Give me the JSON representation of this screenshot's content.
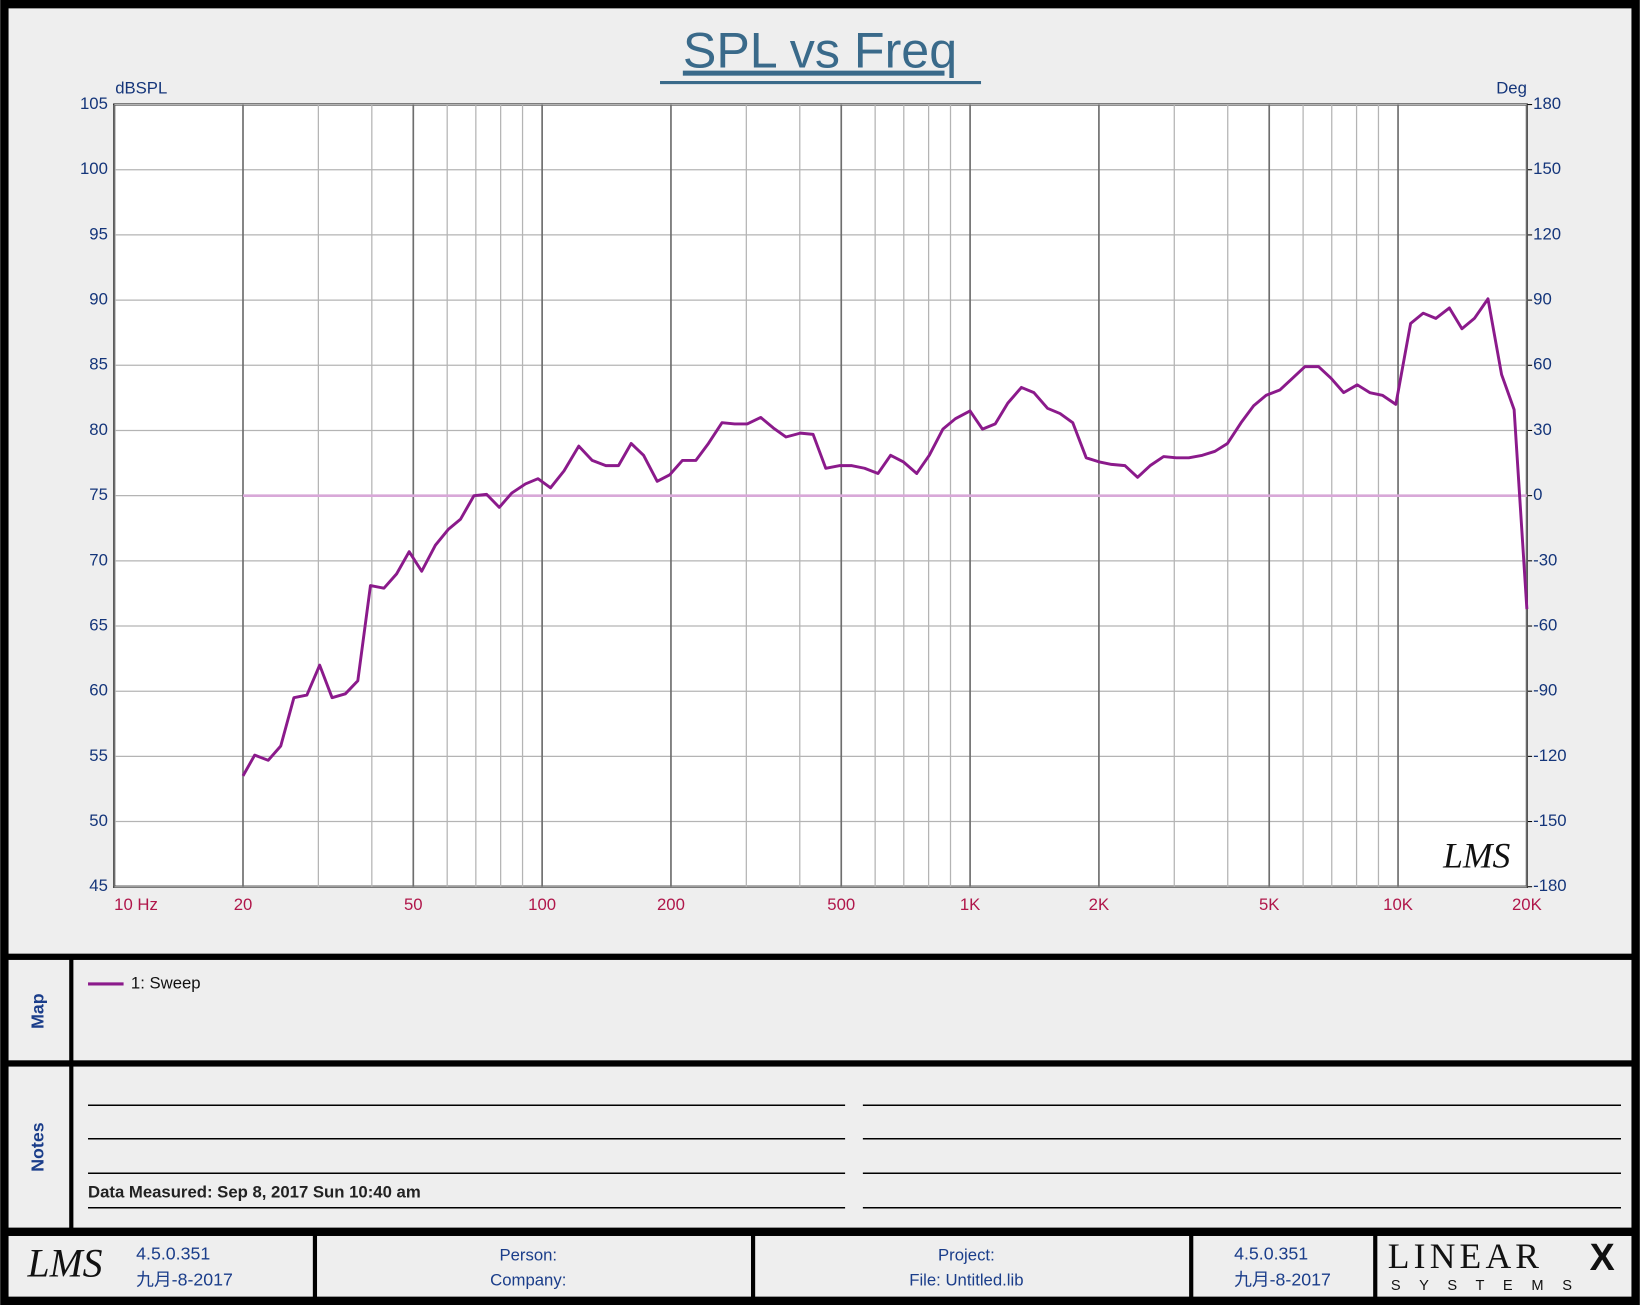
{
  "chart_data": {
    "type": "line",
    "title": "SPL vs Freq",
    "ylabel": "dBSPL",
    "y2label": "Deg",
    "logx": true,
    "grid": true,
    "x": [
      20,
      21.3,
      22.9,
      24.5,
      26.3,
      28.2,
      30.2,
      32.3,
      34.7,
      37.1,
      39.7,
      42.7,
      45.7,
      48.9,
      52.3,
      56.3,
      60.3,
      64.5,
      69.3,
      74.2,
      79.4,
      84.9,
      91.4,
      97.8,
      104.6,
      112.5,
      121.8,
      130.9,
      140.9,
      150.8,
      161.4,
      172.6,
      185.7,
      198.7,
      212.7,
      228.7,
      244.7,
      263.2,
      281.8,
      301.4,
      324.2,
      346.7,
      371.3,
      401.5,
      429.6,
      459.9,
      494.7,
      529.5,
      566.6,
      609.5,
      652.1,
      697.9,
      750.4,
      803,
      863.7,
      924.3,
      1000,
      1069,
      1145,
      1225,
      1318,
      1410,
      1517,
      1623,
      1737,
      1868,
      1999,
      2139,
      2301,
      2462,
      2634,
      2833,
      3032,
      3244,
      3490,
      3734,
      3995,
      4298,
      4599,
      4920,
      5293,
      5664,
      6060,
      6519,
      6975,
      7463,
      8028,
      8590,
      9190,
      9885,
      10700,
      11450,
      12250,
      13180,
      14100,
      15080,
      16220,
      17450,
      18670,
      20000
    ],
    "series": [
      {
        "name": "1: Sweep",
        "color": "#8b1a8b",
        "values": [
          53.5,
          55.1,
          54.7,
          55.8,
          59.5,
          59.7,
          62.0,
          59.5,
          59.8,
          60.8,
          68.1,
          67.9,
          69.0,
          70.7,
          69.2,
          71.2,
          72.4,
          73.2,
          75.0,
          75.1,
          74.1,
          75.2,
          75.9,
          76.3,
          75.6,
          76.9,
          78.8,
          77.7,
          77.3,
          77.3,
          79.0,
          78.1,
          76.1,
          76.6,
          77.7,
          77.7,
          79.0,
          80.6,
          80.5,
          80.5,
          81.0,
          80.2,
          79.5,
          79.8,
          79.7,
          77.1,
          77.3,
          77.3,
          77.1,
          76.7,
          78.1,
          77.6,
          76.7,
          78.1,
          80.1,
          80.9,
          81.5,
          80.1,
          80.5,
          82.1,
          83.3,
          82.9,
          81.7,
          81.3,
          80.6,
          77.9,
          77.6,
          77.4,
          77.3,
          76.4,
          77.3,
          78.0,
          77.9,
          77.9,
          78.1,
          78.4,
          79.0,
          80.6,
          81.9,
          82.7,
          83.1,
          84.0,
          84.9,
          84.9,
          84.0,
          82.9,
          83.5,
          82.9,
          82.7,
          82.0,
          88.2,
          89.0,
          88.6,
          89.4,
          87.8,
          88.6,
          90.1,
          84.3,
          81.6,
          66.3
        ]
      }
    ],
    "phase_line": {
      "value": 0,
      "color": "#d8a8d8",
      "axis": "y2"
    },
    "xlim": [
      10,
      20000
    ],
    "xticks": [
      {
        "value": 10,
        "label": "10  Hz"
      },
      20,
      50,
      100,
      200,
      500,
      {
        "value": 1000,
        "label": "1K"
      },
      {
        "value": 2000,
        "label": "2K"
      },
      {
        "value": 5000,
        "label": "5K"
      },
      {
        "value": 10000,
        "label": "10K"
      },
      {
        "value": 20000,
        "label": "20K"
      }
    ],
    "xgrid": [
      30,
      40,
      60,
      70,
      80,
      90,
      300,
      400,
      600,
      700,
      800,
      900,
      3000,
      4000,
      6000,
      7000,
      8000,
      9000
    ],
    "ylim": [
      45,
      105
    ],
    "yticks": [
      45,
      50,
      55,
      60,
      65,
      70,
      75,
      80,
      85,
      90,
      95,
      100,
      105
    ],
    "y2lim": [
      -180,
      180
    ],
    "y2ticks": [
      -180,
      -150,
      -120,
      -90,
      -60,
      -30,
      0,
      30,
      60,
      90,
      120,
      150,
      180
    ],
    "watermark": "LMS"
  },
  "panel": {
    "map_label": "Map",
    "notes_label": "Notes",
    "measured": "Data Measured: Sep 8, 2017 Sun 10:40 am",
    "footer": {
      "version": "4.5.0.351",
      "date": "九月-8-2017",
      "person": "Person:",
      "company": "Company:",
      "project": "Project:",
      "file": "File: Untitled.lib",
      "version2": "4.5.0.351",
      "date2": "九月-8-2017",
      "logo": "LMS",
      "brand": "LINEAR",
      "brand_x": "X",
      "brand_sub": "S Y S T E M S"
    }
  }
}
